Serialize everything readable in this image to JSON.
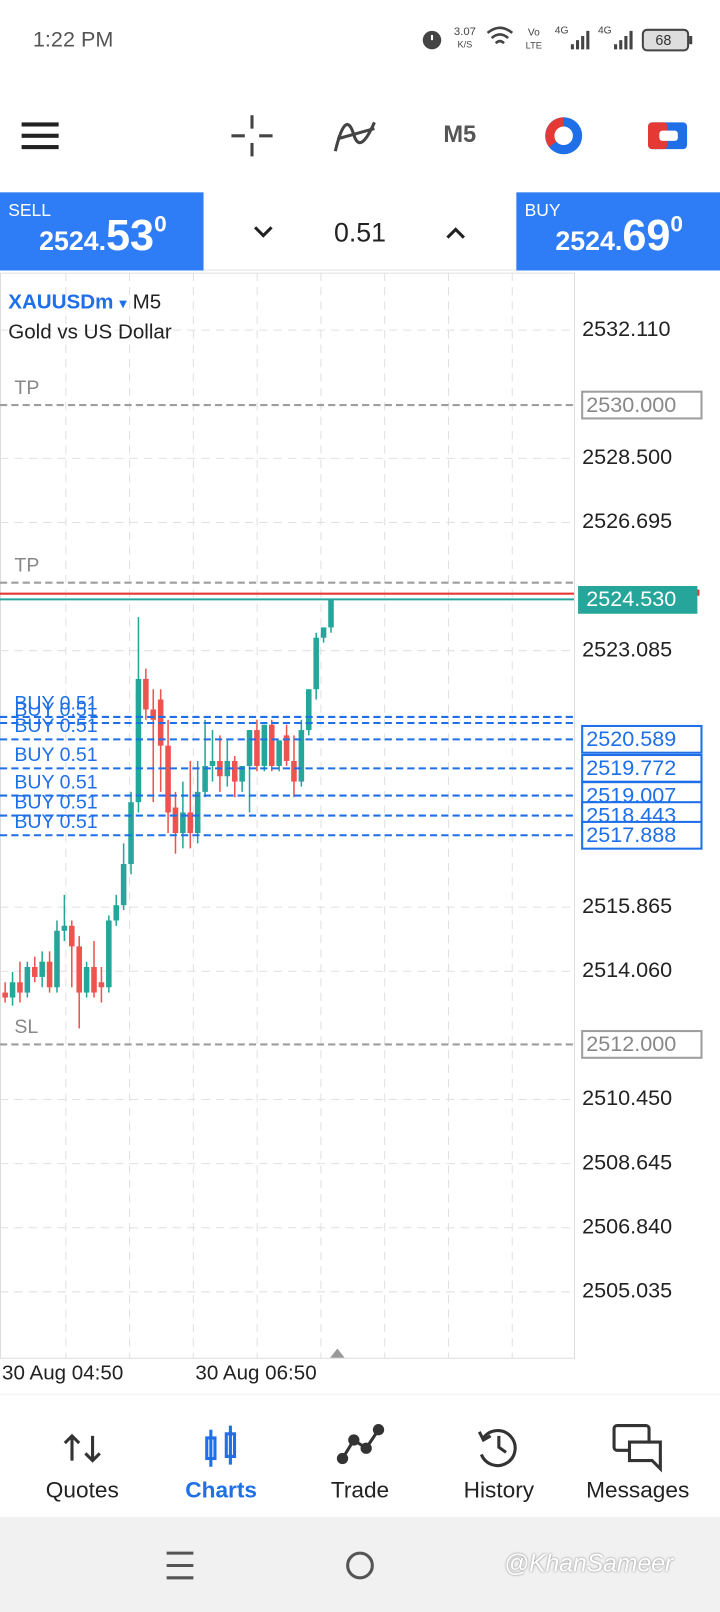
{
  "status_bar": {
    "time": "1:22 PM",
    "speed": "3.07",
    "speed_unit": "K/S",
    "volte_top": "Vo",
    "volte_bottom": "LTE",
    "net1": "4G",
    "net2": "4G",
    "battery": "68"
  },
  "toolbar": {
    "timeframe": "M5"
  },
  "trade_panel": {
    "sell": {
      "label": "SELL",
      "price_main": "2524.",
      "price_big": "53",
      "price_sup": "0"
    },
    "lot": "0.51",
    "buy": {
      "label": "BUY",
      "price_main": "2524.",
      "price_big": "69",
      "price_sup": "0"
    }
  },
  "chart_data": {
    "type": "candlestick",
    "symbol": "XAUUSDm",
    "symbol_arrow": "▾",
    "timeframe": "M5",
    "description": "Gold vs US Dollar",
    "up_color": "#26a69a",
    "down_color": "#ef5350",
    "grid": true,
    "ylim": [
      2503.18,
      2533.73
    ],
    "yticks": [
      {
        "value": 2532.11,
        "label": "2532.110"
      },
      {
        "value": 2528.5,
        "label": "2528.500"
      },
      2526.695,
      2523.085,
      2515.865,
      {
        "value": 2514.06,
        "label": "2514.060"
      },
      {
        "value": 2510.45,
        "label": "2510.450"
      },
      2508.645,
      {
        "value": 2506.84,
        "label": "2506.840"
      },
      2505.035
    ],
    "x_labels": [
      "30 Aug 04:50",
      "30 Aug 06:50"
    ],
    "open": [
      2513.46,
      2513.32,
      2513.75,
      2513.46,
      2514.18,
      2513.9,
      2514.33,
      2513.61,
      2515.2,
      2515.34,
      2514.76,
      2513.46,
      2514.18,
      2513.75,
      2513.61,
      2515.49,
      2515.92,
      2517.08,
      2518.82,
      2522.29,
      2521.43,
      2521.71,
      2520.41,
      2518.67,
      2517.95,
      2518.53,
      2517.95,
      2519.11,
      2519.84,
      2519.98,
      2519.55,
      2519.98,
      2519.4,
      2519.84,
      2520.85,
      2519.84,
      2521.0,
      2519.84,
      2520.7,
      2519.98,
      2519.4,
      2520.85,
      2522.0,
      2523.45,
      2523.74
    ],
    "high": [
      2513.75,
      2514.04,
      2514.33,
      2514.33,
      2514.47,
      2514.62,
      2514.62,
      2515.49,
      2516.21,
      2515.49,
      2515.05,
      2514.33,
      2514.91,
      2514.18,
      2515.63,
      2516.21,
      2517.66,
      2519.11,
      2524.03,
      2522.58,
      2522.0,
      2522.0,
      2521.14,
      2519.11,
      2519.4,
      2519.98,
      2519.98,
      2521.14,
      2520.85,
      2520.7,
      2520.56,
      2520.12,
      2519.84,
      2520.85,
      2521.14,
      2521.0,
      2521.14,
      2520.56,
      2521.0,
      2520.7,
      2521.14,
      2522.0,
      2523.59,
      2523.74,
      2524.53
    ],
    "low": [
      2513.18,
      2513.09,
      2513.18,
      2513.32,
      2513.75,
      2513.61,
      2513.46,
      2513.46,
      2514.91,
      2513.61,
      2512.45,
      2513.32,
      2513.32,
      2513.18,
      2513.46,
      2515.34,
      2515.78,
      2516.79,
      2518.53,
      2521.14,
      2518.82,
      2519.11,
      2517.95,
      2517.37,
      2517.52,
      2517.52,
      2517.66,
      2518.96,
      2519.4,
      2519.11,
      2519.26,
      2518.96,
      2519.11,
      2518.53,
      2519.69,
      2519.69,
      2519.69,
      2519.69,
      2519.84,
      2518.96,
      2519.26,
      2520.7,
      2521.71,
      2523.31,
      2523.59
    ],
    "close": [
      2513.32,
      2513.75,
      2513.46,
      2514.18,
      2513.9,
      2514.33,
      2513.61,
      2515.2,
      2515.34,
      2514.76,
      2513.46,
      2514.18,
      2513.46,
      2513.61,
      2515.49,
      2515.92,
      2517.08,
      2518.82,
      2522.29,
      2521.43,
      2521.14,
      2520.41,
      2518.53,
      2517.95,
      2518.53,
      2517.95,
      2519.11,
      2519.84,
      2519.98,
      2519.55,
      2519.98,
      2519.4,
      2519.84,
      2520.85,
      2519.84,
      2521.0,
      2519.84,
      2520.56,
      2519.98,
      2519.4,
      2520.85,
      2522.0,
      2523.45,
      2523.74,
      2524.53
    ],
    "levels": [
      {
        "label": "TP",
        "price": {
          "value": 2530,
          "label": "2530.000"
        },
        "tag": true
      },
      {
        "label": "TP",
        "price": 2525,
        "tag": false
      },
      {
        "label": "SL",
        "price": {
          "value": 2512,
          "label": "2512.000"
        },
        "tag": true
      }
    ],
    "level_color": "#9e9e9e",
    "orders": [
      {
        "label": "BUY 0.51",
        "price": 2521.22,
        "tag": false
      },
      {
        "label": "BUY 0.51",
        "price": 2521.05,
        "tag": false
      },
      {
        "label": "BUY 0.51",
        "price": 2520.589,
        "tag": true
      },
      {
        "label": "BUY 0.51",
        "price": 2519.772,
        "tag": true
      },
      {
        "label": "BUY 0.51",
        "price": 2519.007,
        "tag": true
      },
      {
        "label": "BUY 0.51",
        "price": 2518.443,
        "tag": true
      },
      {
        "label": "BUY 0.51",
        "price": 2517.888,
        "tag": true
      }
    ],
    "order_color": "#1e6fe8",
    "bid": {
      "value": 2524.53,
      "label": "2524.530"
    },
    "bid_color": "#26a69a",
    "ask": 2524.69,
    "ask_color": "#e53935"
  },
  "nav": [
    "Quotes",
    "Charts",
    "Trade",
    "History",
    "Messages"
  ],
  "watermark": "@KhanSameer"
}
